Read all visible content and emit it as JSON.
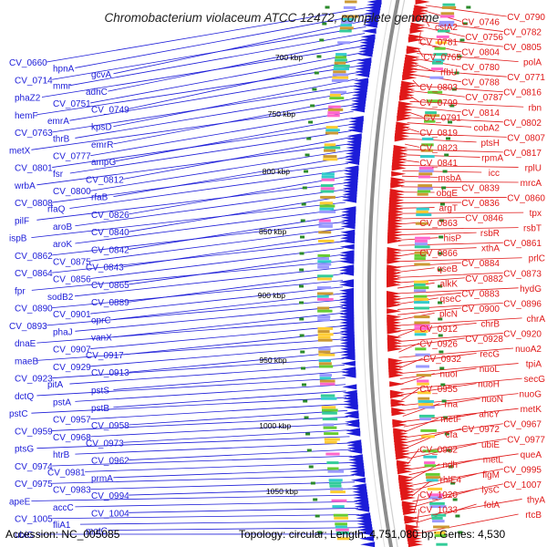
{
  "title": "Chromobacterium violaceum ATCC 12472, complete genome",
  "footer": {
    "accession": "Accession: NC_005085",
    "summary": "Topology: circular; Length: 4,751,080 bp; Genes: 4,530"
  },
  "scale_labels": [
    "700 kbp",
    "750 kbp",
    "800 kbp",
    "850 kbp",
    "900 kbp",
    "950 kbp",
    "1000 kbp",
    "1050 kbp"
  ],
  "colors": {
    "left_strand": "#1c1cd8",
    "right_strand": "#e01818",
    "backbone": "#8c8c8c",
    "ticks": "#2a8a2a",
    "text": "#000000"
  },
  "left_labels": [
    "CV_0660",
    "hpnA",
    "gcvA",
    "CV_0714",
    "mmr",
    "adhC",
    "phaZ2",
    "CV_0751",
    "CV_0749",
    "hemF",
    "emrA",
    "kpsD",
    "CV_0763",
    "thrB",
    "emrR",
    "metX",
    "CV_0777",
    "ampG",
    "CV_0801",
    "fsr",
    "CV_0812",
    "wrbA",
    "CV_0800",
    "rfaB",
    "CV_0808",
    "rfaQ",
    "CV_0826",
    "pilF",
    "aroB",
    "CV_0840",
    "ispB",
    "aroK",
    "CV_0842",
    "CV_0862",
    "CV_0875",
    "CV_0843",
    "CV_0864",
    "CV_0856",
    "CV_0865",
    "fpr",
    "sodB2",
    "CV_0889",
    "CV_0890",
    "CV_0901",
    "oprC",
    "CV_0893",
    "phaJ",
    "vanX",
    "dnaE",
    "CV_0907",
    "CV_0917",
    "maeB",
    "CV_0929",
    "CV_0913",
    "CV_0923",
    "pitA",
    "pstS",
    "dctQ",
    "pstA",
    "pstB",
    "pstC",
    "CV_0957",
    "CV_0958",
    "CV_0959",
    "CV_0968",
    "CV_0973",
    "ptsG",
    "htrB",
    "CV_0962",
    "CV_0974",
    "CV_0981",
    "prmA",
    "CV_0975",
    "CV_0983",
    "CV_0994",
    "apeE",
    "accC",
    "CV_1004",
    "CV_1005",
    "fliA1",
    "motC",
    "ubiG"
  ],
  "right_labels": [
    "CV_0790",
    "CV_0746",
    "cstA2",
    "CV_0782",
    "CV_0756",
    "CV_0781",
    "CV_0805",
    "CV_0804",
    "CV_0765",
    "polA",
    "CV_0780",
    "rfbU",
    "CV_0771",
    "CV_0788",
    "CV_0803",
    "CV_0816",
    "CV_0787",
    "CV_0799",
    "rbn",
    "CV_0814",
    "CV_0791",
    "CV_0802",
    "cobA2",
    "CV_0819",
    "CV_0807",
    "ptsH",
    "CV_0823",
    "CV_0817",
    "rpmA",
    "CV_0841",
    "rplU",
    "icc",
    "msbA",
    "mrcA",
    "CV_0839",
    "obgE",
    "CV_0860",
    "CV_0836",
    "argT",
    "tpx",
    "CV_0846",
    "CV_0863",
    "rsbT",
    "rsbR",
    "hisP",
    "CV_0861",
    "xthA",
    "CV_0866",
    "prlC",
    "CV_0884",
    "qseB",
    "CV_0873",
    "CV_0882",
    "alkK",
    "hydG",
    "CV_0883",
    "qseC",
    "CV_0896",
    "CV_0900",
    "plcN",
    "chrA",
    "chrB",
    "CV_0912",
    "CV_0920",
    "CV_0928",
    "CV_0926",
    "nuoA2",
    "recG",
    "CV_0932",
    "tpiA",
    "nuoL",
    "nuoI",
    "secG",
    "nuoH",
    "CV_0955",
    "nuoG",
    "nuoN",
    "rna",
    "metK",
    "ahcY",
    "metF",
    "CV_0967",
    "CV_0972",
    "cfa",
    "CV_0977",
    "ubiE",
    "CV_0982",
    "queA",
    "metL",
    "ndh",
    "CV_0995",
    "flgM",
    "rhlE4",
    "CV_1007",
    "lysC",
    "CV_1020",
    "thyA",
    "folA",
    "CV_1033",
    "rtcB"
  ]
}
